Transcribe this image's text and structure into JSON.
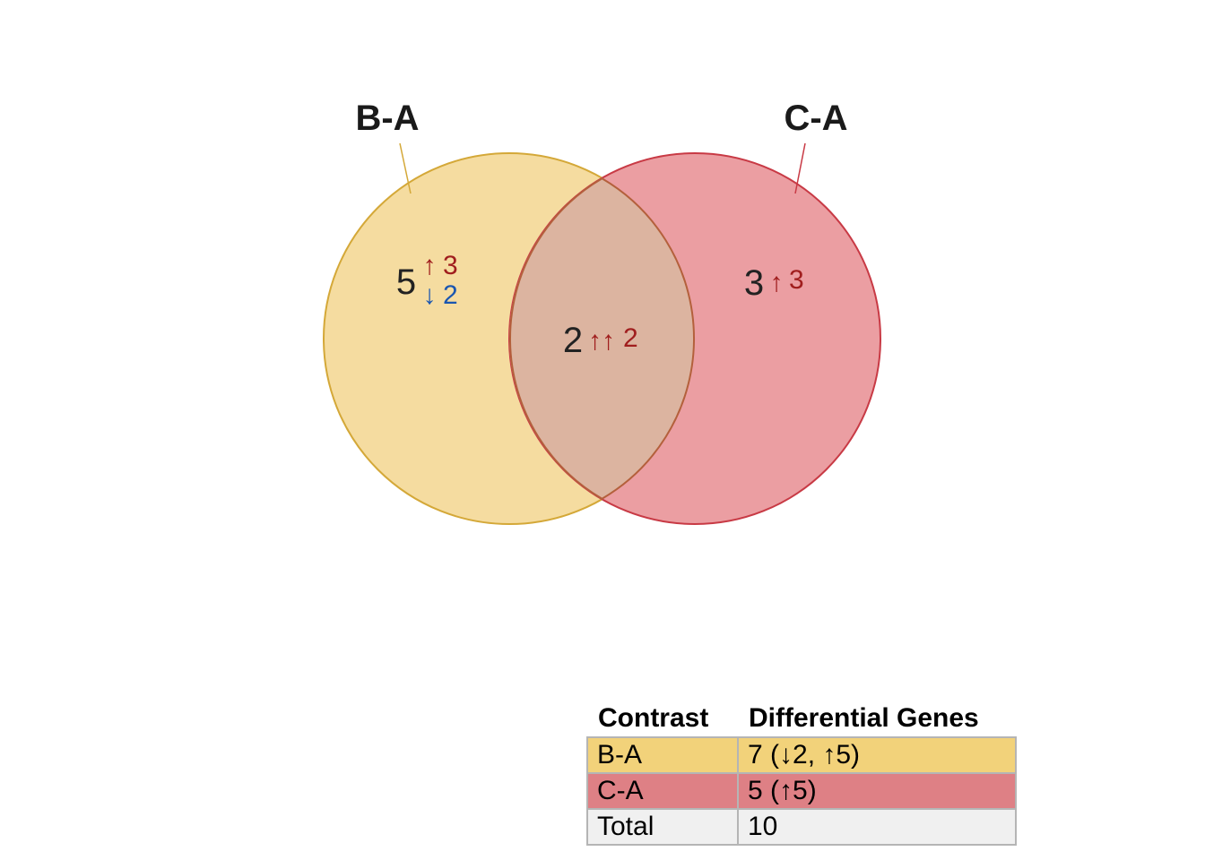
{
  "sets": [
    {
      "name": "B-A",
      "fill": "#f5dca0",
      "stroke": "#d4a838",
      "only": {
        "total": "5",
        "up_arrow": "↑",
        "up_count": "3",
        "down_arrow": "↓",
        "down_count": "2"
      }
    },
    {
      "name": "C-A",
      "fill": "#eb9ea2",
      "stroke": "#c83a45",
      "only": {
        "total": "3",
        "up_arrow": "↑",
        "up_count": "3"
      }
    }
  ],
  "intersection": {
    "total": "2",
    "arrows": "↑↑",
    "count": "2",
    "fill": "#dcb4a0",
    "stroke": "#b4603c"
  },
  "colors": {
    "up": "#a01e1e",
    "down": "#1a56b0"
  },
  "summary_table": {
    "headers": [
      "Contrast",
      "Differential Genes"
    ],
    "rows": [
      {
        "contrast": "B-A",
        "genes": "7 (↓2, ↑5)",
        "color": "#f2d27a"
      },
      {
        "contrast": "C-A",
        "genes": "5 (↑5)",
        "color": "#de8085"
      },
      {
        "contrast": "Total",
        "genes": "10",
        "color": "#f0f0f0"
      }
    ]
  }
}
